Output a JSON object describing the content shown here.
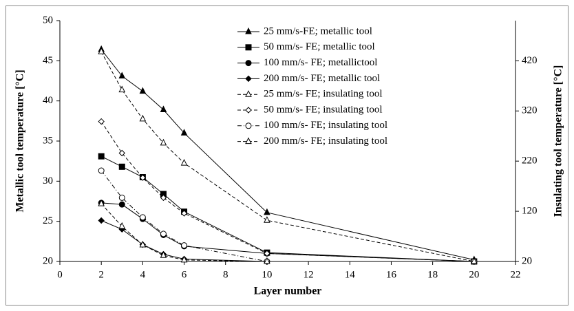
{
  "chart_data": {
    "type": "line",
    "x_label": "Layer number",
    "y_label": "Metallic tool temperature [°C]",
    "y2_label": "Insulating tool temperature [°C]",
    "x": [
      2,
      3,
      4,
      5,
      6,
      10,
      20
    ],
    "xlim": [
      0,
      22
    ],
    "xticks": [
      0,
      2,
      4,
      6,
      8,
      10,
      12,
      14,
      16,
      18,
      20,
      22
    ],
    "ylim": [
      20,
      50
    ],
    "yticks": [
      20,
      25,
      30,
      35,
      40,
      45,
      50
    ],
    "y2lim": [
      20,
      500
    ],
    "y2ticks": [
      20,
      120,
      220,
      320,
      420
    ],
    "grid": false,
    "legend": "top",
    "series": [
      {
        "name": "25 mm/s-FE; metallic tool",
        "color": "#000000",
        "marker": "triangle",
        "filled": true,
        "dash": "solid",
        "values": [
          46.4,
          43.1,
          41.2,
          38.9,
          36.0,
          26.1,
          20.2
        ]
      },
      {
        "name": "50 mm/s- FE; metallic tool",
        "color": "#000000",
        "marker": "square",
        "filled": true,
        "dash": "solid",
        "values": [
          33.1,
          31.8,
          30.5,
          28.4,
          26.2,
          21.1,
          20.0
        ]
      },
      {
        "name": "100 mm/s- FE; metallictool",
        "color": "#000000",
        "marker": "circle",
        "filled": true,
        "dash": "solid",
        "values": [
          27.3,
          27.1,
          25.3,
          23.3,
          21.9,
          21.0,
          20.0
        ]
      },
      {
        "name": "200 mm/s- FE; metallic tool",
        "color": "#000000",
        "marker": "diamond",
        "filled": true,
        "dash": "solid",
        "values": [
          25.1,
          24.0,
          22.1,
          20.9,
          20.3,
          20.0,
          20.0
        ]
      },
      {
        "name": "25 mm/s- FE; insulating tool",
        "color": "#000000",
        "marker": "triangle",
        "filled": false,
        "dash": "dashed",
        "axis": "y2",
        "values": [
          438,
          362,
          304,
          256,
          216,
          102,
          20
        ]
      },
      {
        "name": "50 mm/s- FE; insulating tool",
        "color": "#000000",
        "marker": "diamond",
        "filled": false,
        "dash": "dashed",
        "axis": "y2",
        "values": [
          299,
          236,
          187,
          147,
          116,
          36,
          20
        ]
      },
      {
        "name": "100 mm/s- FE; insulating tool",
        "color": "#000000",
        "marker": "circle",
        "filled": false,
        "dash": "dashdot",
        "axis": "y2",
        "values": [
          201,
          147,
          108,
          75,
          52,
          20,
          20
        ]
      },
      {
        "name": "200 mm/s- FE; insulating tool",
        "color": "#000000",
        "marker": "triangle",
        "filled": false,
        "dash": "dashed",
        "axis": "y2",
        "values": [
          135,
          90,
          53,
          32,
          23,
          20,
          20
        ]
      }
    ]
  }
}
